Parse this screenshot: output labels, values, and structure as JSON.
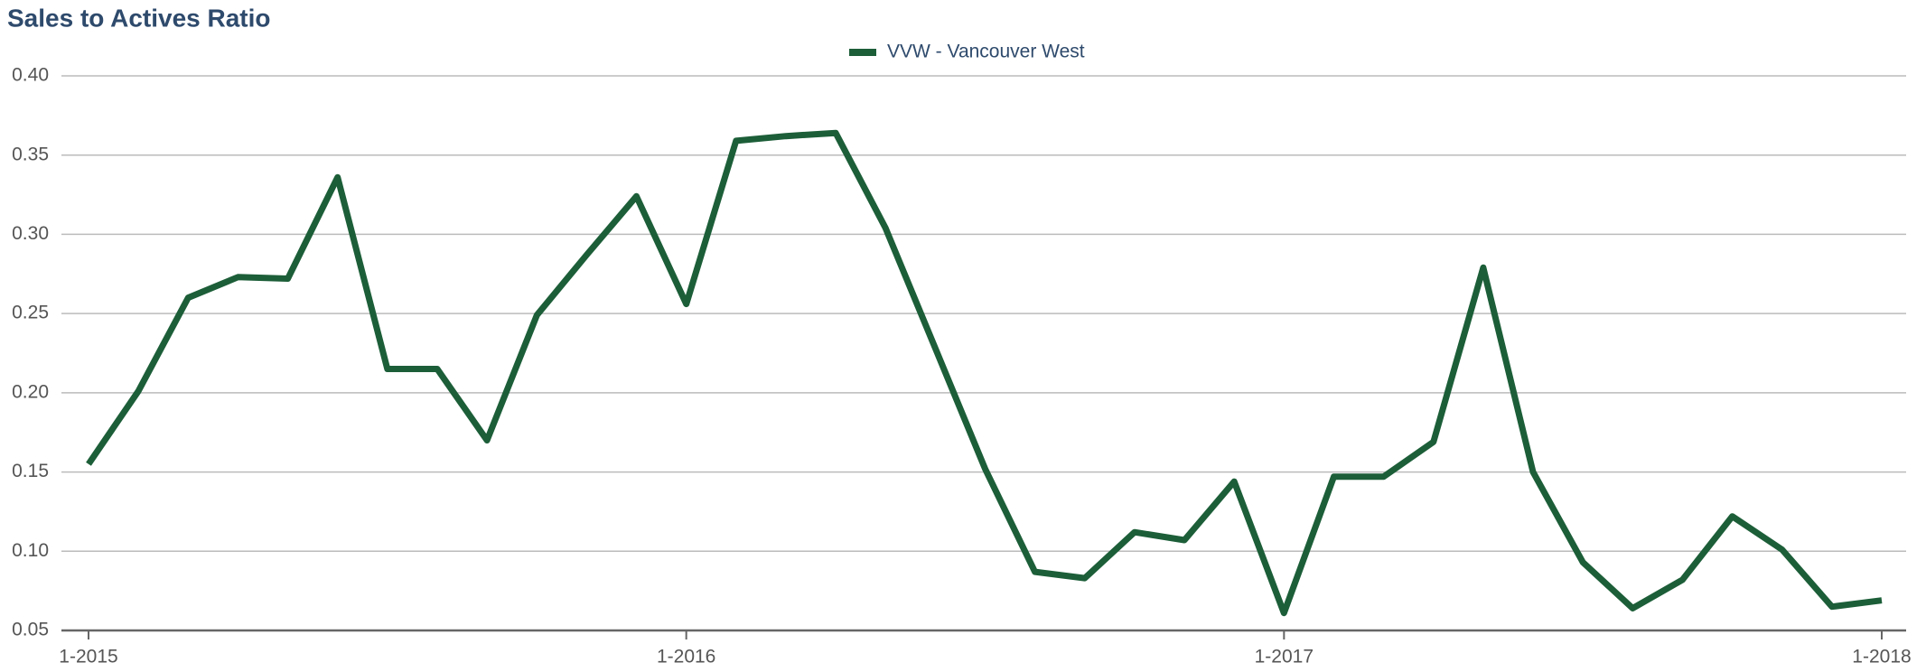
{
  "chart_data": {
    "type": "line",
    "title": "Sales to Actives Ratio",
    "categories": [
      "1-2015",
      null,
      null,
      null,
      null,
      null,
      null,
      null,
      null,
      null,
      null,
      null,
      "1-2016",
      null,
      null,
      null,
      null,
      null,
      null,
      null,
      null,
      null,
      null,
      null,
      "1-2017",
      null,
      null,
      null,
      null,
      null,
      null,
      null,
      null,
      null,
      null,
      null,
      "1-2018"
    ],
    "series": [
      {
        "name": "VVW - Vancouver West",
        "color": "#1c5e38",
        "values": [
          0.155,
          0.201,
          0.26,
          0.273,
          0.272,
          0.336,
          0.215,
          0.215,
          0.17,
          0.249,
          0.287,
          0.324,
          0.256,
          0.359,
          0.362,
          0.364,
          0.304,
          0.228,
          0.152,
          0.087,
          0.083,
          0.112,
          0.107,
          0.144,
          0.061,
          0.147,
          0.147,
          0.169,
          0.279,
          0.15,
          0.093,
          0.064,
          0.082,
          0.122,
          0.101,
          0.065,
          0.069
        ]
      }
    ],
    "ylim": [
      0.05,
      0.4
    ],
    "yticks": [
      0.05,
      {
        "value": 0.1,
        "label": "0.10"
      },
      0.15,
      {
        "value": 0.2,
        "label": "0.20"
      },
      0.25,
      {
        "value": 0.3,
        "label": "0.30"
      },
      0.35,
      {
        "value": 0.4,
        "label": "0.40"
      }
    ],
    "grid": true,
    "legend": "top"
  }
}
